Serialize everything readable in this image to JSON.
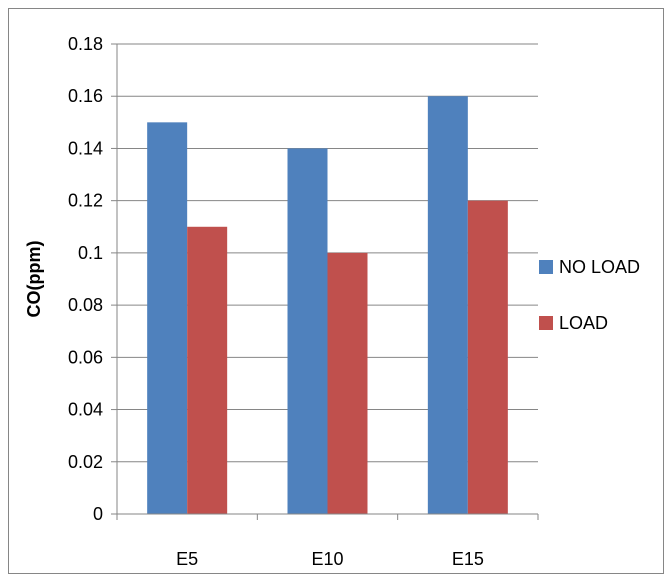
{
  "chart_data": {
    "type": "bar",
    "title": "",
    "xlabel": "",
    "ylabel": "CO(ppm)",
    "categories": [
      "E5",
      "E10",
      "E15"
    ],
    "series": [
      {
        "name": "NO LOAD",
        "values": [
          0.15,
          0.14,
          0.16
        ],
        "color": "#4F81BD"
      },
      {
        "name": "LOAD",
        "values": [
          0.11,
          0.1,
          0.12
        ],
        "color": "#C0504D"
      }
    ],
    "ylim": [
      0,
      0.18
    ],
    "yticks": [
      "0",
      "0.02",
      "0.04",
      "0.06",
      "0.08",
      "0.1",
      "0.12",
      "0.14",
      "0.16",
      "0.18"
    ],
    "grid": true,
    "legend_position": "right"
  }
}
